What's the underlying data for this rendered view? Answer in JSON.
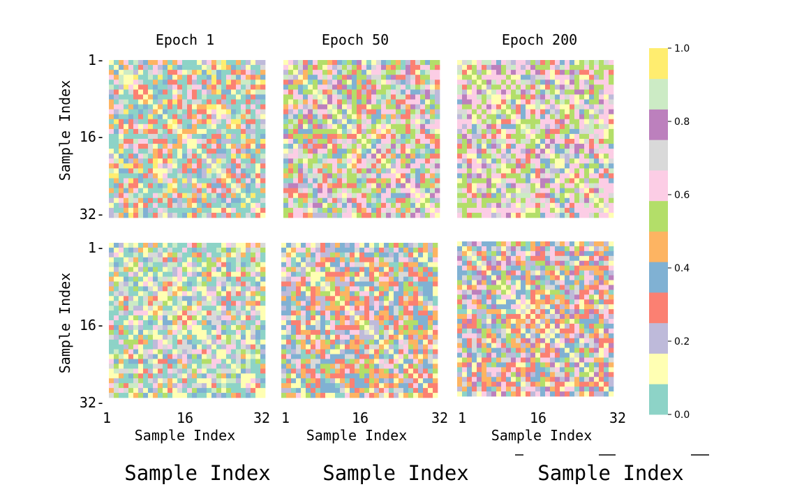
{
  "chart_data": {
    "type": "heatmap",
    "matrix_size": 32,
    "column_titles": [
      "Epoch 1",
      "Epoch 50",
      "Epoch 200"
    ],
    "xlabel": "Sample Index",
    "ylabel": "Sample Index",
    "bottom_captions": [
      "Sample Index",
      "Sample Index",
      "Sample Index"
    ],
    "x_ticks": [
      "1",
      "16",
      "32"
    ],
    "y_ticks": [
      "1-",
      "16-",
      "32-"
    ],
    "colorbar": {
      "ticks": [
        "0.0",
        "0.2",
        "0.4",
        "0.6",
        "0.8",
        "1.0"
      ],
      "range": [
        0,
        1
      ],
      "colors": [
        "#8dd3c7",
        "#ffffb3",
        "#bebada",
        "#fb8072",
        "#80b1d3",
        "#fdb462",
        "#b3de69",
        "#fccde5",
        "#d9d9d9",
        "#bc80bd",
        "#ccebc5",
        "#ffed6f"
      ]
    },
    "panels": [
      {
        "row": 1,
        "col": 1,
        "title": "Epoch 1",
        "value_bins": [
          0,
          0,
          0,
          0,
          1,
          2,
          3,
          3,
          4,
          5,
          7,
          8,
          10,
          11
        ],
        "diag_bin": 1
      },
      {
        "row": 1,
        "col": 2,
        "title": "Epoch 50",
        "value_bins": [
          7,
          7,
          7,
          6,
          6,
          6,
          3,
          3,
          4,
          5,
          8,
          9,
          10,
          0,
          1,
          2
        ],
        "diag_bin": 1
      },
      {
        "row": 1,
        "col": 3,
        "title": "Epoch 200",
        "value_bins": [
          7,
          7,
          7,
          7,
          6,
          6,
          6,
          8,
          9,
          10,
          3,
          1,
          2,
          4
        ],
        "diag_bin": 1
      },
      {
        "row": 2,
        "col": 1,
        "title": "Epoch 1",
        "value_bins": [
          0,
          0,
          0,
          1,
          1,
          2,
          3,
          4,
          5,
          6,
          7,
          8,
          10
        ],
        "diag_bin": 1
      },
      {
        "row": 2,
        "col": 2,
        "title": "Epoch 50",
        "value_bins": [
          4,
          4,
          4,
          3,
          3,
          5,
          5,
          2,
          1,
          0,
          6,
          7,
          8
        ],
        "diag_bin": 1
      },
      {
        "row": 2,
        "col": 3,
        "title": "Epoch 200",
        "value_bins": [
          4,
          4,
          3,
          3,
          5,
          5,
          6,
          7,
          2,
          1,
          0,
          8,
          9
        ],
        "diag_bin": 1
      }
    ]
  }
}
